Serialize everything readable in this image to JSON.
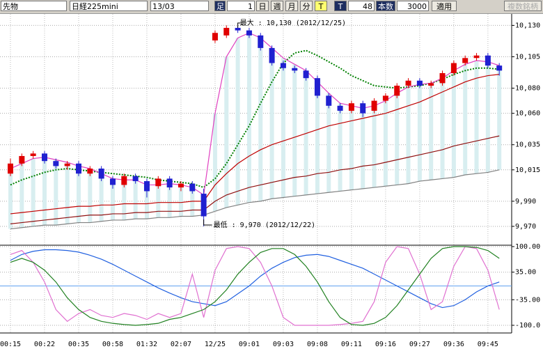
{
  "toolbar": {
    "market": "先物",
    "symbol": "日経225mini",
    "contract": "13/03",
    "bar_button": "足",
    "bar_size": "1",
    "periods": [
      "日",
      "週",
      "月",
      "分"
    ],
    "tick_yellow": "T",
    "tick_dark": "T",
    "count": "48",
    "count_label": "本数",
    "bars": "3000",
    "apply": "適用",
    "multi": "複数銘柄"
  },
  "chart_data": [
    {
      "type": "candlestick",
      "up_color": "#e00000",
      "down_color": "#2020d0",
      "categories": [
        "00:15",
        null,
        null,
        "00:22",
        null,
        null,
        "00:35",
        null,
        null,
        "00:58",
        null,
        null,
        "01:32",
        null,
        null,
        "02:07",
        null,
        null,
        "12/25",
        null,
        null,
        "09:01",
        null,
        null,
        "09:03",
        null,
        null,
        "09:08",
        null,
        null,
        "09:11",
        null,
        null,
        "09:16",
        null,
        null,
        "09:27",
        null,
        null,
        "09:36",
        null,
        null,
        "09:45",
        null
      ],
      "ohlc": [
        [
          10012,
          10024,
          10010,
          10020
        ],
        [
          10020,
          10028,
          10018,
          10026
        ],
        [
          10026,
          10030,
          10024,
          10028
        ],
        [
          10028,
          10030,
          10020,
          10022
        ],
        [
          10022,
          10024,
          10016,
          10018
        ],
        [
          10018,
          10022,
          10015,
          10020
        ],
        [
          10020,
          10022,
          10010,
          10012
        ],
        [
          10012,
          10018,
          10010,
          10016
        ],
        [
          10016,
          10018,
          10006,
          10008
        ],
        [
          10008,
          10010,
          10000,
          10003
        ],
        [
          10003,
          10012,
          10001,
          10010
        ],
        [
          10010,
          10012,
          10004,
          10006
        ],
        [
          10006,
          10008,
          9993,
          9998
        ],
        [
          10002,
          10010,
          10000,
          10008
        ],
        [
          10008,
          10010,
          9999,
          10001
        ],
        [
          10001,
          10006,
          9998,
          10004
        ],
        [
          10004,
          10006,
          9996,
          9998
        ],
        [
          9996,
          10000,
          9970,
          9978
        ],
        [
          10118,
          10126,
          10116,
          10124
        ],
        [
          10122,
          10130,
          10120,
          10128
        ],
        [
          10128,
          10130,
          10124,
          10126
        ],
        [
          10126,
          10128,
          10120,
          10122
        ],
        [
          10122,
          10124,
          10110,
          10112
        ],
        [
          10112,
          10114,
          10098,
          10100
        ],
        [
          10100,
          10102,
          10094,
          10096
        ],
        [
          10096,
          10098,
          10092,
          10094
        ],
        [
          10094,
          10096,
          10086,
          10088
        ],
        [
          10088,
          10090,
          10072,
          10074
        ],
        [
          10074,
          10076,
          10064,
          10066
        ],
        [
          10066,
          10068,
          10060,
          10062
        ],
        [
          10062,
          10070,
          10060,
          10068
        ],
        [
          10068,
          10070,
          10057,
          10060
        ],
        [
          10062,
          10072,
          10060,
          10070
        ],
        [
          10070,
          10076,
          10068,
          10074
        ],
        [
          10074,
          10084,
          10072,
          10082
        ],
        [
          10082,
          10088,
          10080,
          10086
        ],
        [
          10086,
          10088,
          10080,
          10082
        ],
        [
          10082,
          10086,
          10080,
          10084
        ],
        [
          10084,
          10094,
          10082,
          10092
        ],
        [
          10092,
          10102,
          10090,
          10100
        ],
        [
          10100,
          10106,
          10098,
          10104
        ],
        [
          10104,
          10108,
          10102,
          10106
        ],
        [
          10106,
          10108,
          10096,
          10098
        ],
        [
          10098,
          10100,
          10090,
          10094
        ]
      ],
      "series": [
        {
          "color": "#008000",
          "dotted": true,
          "values": [
            10003,
            10007,
            10010,
            10013,
            10015,
            10016,
            10015,
            10014,
            10013,
            10012,
            10011,
            10010,
            10009,
            10007,
            10006,
            10005,
            10004,
            10001,
            10008,
            10020,
            10035,
            10050,
            10068,
            10085,
            10100,
            10108,
            10110,
            10106,
            10101,
            10096,
            10090,
            10086,
            10082,
            10081,
            10080,
            10081,
            10082,
            10084,
            10087,
            10091,
            10094,
            10096,
            10096,
            10095
          ]
        },
        {
          "color": "#e040c0",
          "values": [
            10016,
            10020,
            10024,
            10025,
            10023,
            10021,
            10018,
            10016,
            10012,
            10008,
            10007,
            10007,
            10003,
            10003,
            10004,
            10003,
            10001,
            9995,
            10060,
            10105,
            10120,
            10124,
            10120,
            10112,
            10104,
            10099,
            10094,
            10085,
            10076,
            10068,
            10066,
            10064,
            10066,
            10070,
            10076,
            10081,
            10083,
            10084,
            10088,
            10094,
            10099,
            10102,
            10101,
            10098
          ]
        },
        {
          "color": "#c00000",
          "values": [
            9980,
            9981,
            9982,
            9983,
            9984,
            9985,
            9986,
            9986,
            9987,
            9987,
            9988,
            9988,
            9988,
            9989,
            9989,
            9989,
            9990,
            9990,
            10003,
            10012,
            10020,
            10026,
            10031,
            10035,
            10038,
            10041,
            10044,
            10047,
            10050,
            10052,
            10054,
            10056,
            10058,
            10060,
            10063,
            10066,
            10069,
            10073,
            10077,
            10081,
            10085,
            10088,
            10090,
            10091
          ]
        },
        {
          "color": "#901010",
          "values": [
            9972,
            9973,
            9974,
            9975,
            9976,
            9977,
            9978,
            9979,
            9979,
            9980,
            9980,
            9981,
            9981,
            9982,
            9982,
            9982,
            9983,
            9983,
            9990,
            9995,
            9998,
            10001,
            10003,
            10005,
            10007,
            10009,
            10010,
            10012,
            10013,
            10015,
            10016,
            10018,
            10019,
            10021,
            10023,
            10025,
            10027,
            10029,
            10031,
            10034,
            10036,
            10038,
            10040,
            10042
          ]
        },
        {
          "color": "#808080",
          "values": [
            9968,
            9969,
            9970,
            9971,
            9971,
            9972,
            9973,
            9973,
            9974,
            9975,
            9975,
            9976,
            9976,
            9977,
            9977,
            9978,
            9978,
            9979,
            9982,
            9985,
            9987,
            9989,
            9990,
            9992,
            9993,
            9994,
            9995,
            9996,
            9997,
            9998,
            9999,
            10000,
            10001,
            10002,
            10003,
            10004,
            10006,
            10007,
            10008,
            10009,
            10011,
            10012,
            10013,
            10015
          ]
        }
      ],
      "ylim": [
        9955,
        10138
      ],
      "yticks": [
        {
          "value": 10130,
          "label": "10,130"
        },
        {
          "value": 10105,
          "label": "10,105"
        },
        {
          "value": 10080,
          "label": "10,080"
        },
        {
          "value": 10060,
          "label": "10,060"
        },
        {
          "value": 10035,
          "label": "10,035"
        },
        {
          "value": 10015,
          "label": "10,015"
        },
        {
          "value": 9990,
          "label": "9,990"
        },
        {
          "value": 9970,
          "label": "9,970"
        }
      ],
      "grid": true,
      "annotations": [
        "最大 : 10,130 (2012/12/25)",
        "最低 : 9,970 (2012/12/22)"
      ]
    },
    {
      "type": "line",
      "ylim": [
        -119.5,
        103.5
      ],
      "yticks": [
        {
          "value": 100,
          "label": "100.00"
        },
        {
          "value": 35,
          "label": "35.00"
        },
        {
          "value": -35,
          "label": "-35.00"
        },
        {
          "value": -100,
          "label": "-100.0"
        }
      ],
      "ref_line": 0,
      "ref_color": "#60a0f0",
      "series": [
        {
          "color": "#2060e0",
          "values": [
            65,
            80,
            88,
            92,
            92,
            90,
            86,
            78,
            68,
            55,
            40,
            25,
            10,
            -5,
            -18,
            -30,
            -40,
            -45,
            -50,
            -40,
            -20,
            0,
            25,
            45,
            60,
            72,
            78,
            80,
            75,
            65,
            55,
            45,
            30,
            15,
            0,
            -15,
            -30,
            -45,
            -55,
            -50,
            -35,
            -15,
            0,
            10
          ]
        },
        {
          "color": "#e070d0",
          "values": [
            80,
            90,
            60,
            10,
            -60,
            -90,
            -70,
            -60,
            -75,
            -80,
            -70,
            -75,
            -85,
            -70,
            -80,
            -70,
            30,
            -80,
            40,
            95,
            100,
            95,
            60,
            0,
            -80,
            -100,
            -100,
            -100,
            -100,
            -98,
            -95,
            -90,
            -40,
            60,
            100,
            95,
            30,
            -60,
            -40,
            50,
            100,
            95,
            40,
            -60
          ]
        },
        {
          "color": "#208020",
          "values": [
            60,
            70,
            60,
            40,
            10,
            -30,
            -60,
            -80,
            -90,
            -95,
            -98,
            -100,
            -98,
            -95,
            -85,
            -80,
            -70,
            -60,
            -40,
            -10,
            30,
            60,
            85,
            95,
            95,
            80,
            50,
            10,
            -40,
            -80,
            -98,
            -100,
            -95,
            -80,
            -50,
            -10,
            30,
            70,
            95,
            100,
            100,
            98,
            90,
            70
          ]
        }
      ]
    }
  ]
}
